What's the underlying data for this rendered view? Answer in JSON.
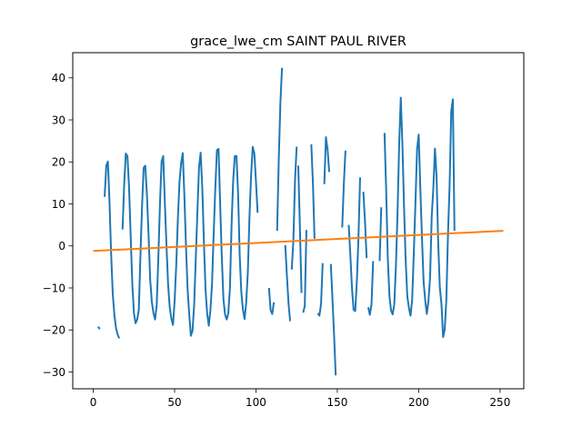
{
  "chart_data": {
    "type": "line",
    "title": "grace_lwe_cm SAINT PAUL RIVER",
    "xlabel": "",
    "ylabel": "",
    "xlim": [
      -12.6,
      264.6
    ],
    "ylim": [
      -34.0,
      46.0
    ],
    "xticks": [
      0,
      50,
      100,
      150,
      200,
      250
    ],
    "yticks": [
      -30,
      -20,
      -10,
      0,
      10,
      20,
      30,
      40
    ],
    "grid": false,
    "legend": "none",
    "series": [
      {
        "color": "#1f77b4",
        "segments": [
          [
            [
              3,
              -19.2
            ],
            [
              4,
              -19.8
            ]
          ],
          [
            [
              7,
              11.7
            ],
            [
              8,
              19.1
            ],
            [
              9,
              20.1
            ],
            [
              10,
              10.2
            ],
            [
              11,
              -2.0
            ],
            [
              12,
              -11.5
            ],
            [
              13,
              -16.5
            ],
            [
              14,
              -19.6
            ],
            [
              15,
              -21.1
            ],
            [
              16,
              -22.0
            ]
          ],
          [
            [
              18,
              3.9
            ],
            [
              19,
              14.5
            ],
            [
              20,
              22.0
            ],
            [
              21,
              21.4
            ],
            [
              22,
              14.0
            ],
            [
              23,
              2.3
            ],
            [
              24,
              -9.0
            ],
            [
              25,
              -16.0
            ],
            [
              26,
              -18.4
            ],
            [
              27,
              -17.5
            ],
            [
              28,
              -15.2
            ],
            [
              29,
              -2.2
            ],
            [
              30,
              9.6
            ],
            [
              31,
              18.6
            ],
            [
              32,
              19.1
            ],
            [
              33,
              12.1
            ],
            [
              34,
              2.5
            ],
            [
              35,
              -8.1
            ],
            [
              36,
              -13.3
            ],
            [
              37,
              -16.0
            ],
            [
              38,
              -17.5
            ],
            [
              39,
              -14.1
            ],
            [
              40,
              -2.7
            ],
            [
              41,
              10.0
            ],
            [
              42,
              20.1
            ],
            [
              43,
              21.4
            ],
            [
              44,
              10.2
            ],
            [
              45,
              0.2
            ],
            [
              46,
              -9.2
            ],
            [
              47,
              -14.6
            ],
            [
              48,
              -17.3
            ],
            [
              49,
              -18.8
            ],
            [
              50,
              -13.2
            ],
            [
              51,
              -4.6
            ],
            [
              52,
              6.4
            ],
            [
              53,
              15.2
            ],
            [
              54,
              19.7
            ],
            [
              55,
              22.1
            ],
            [
              56,
              12.0
            ],
            [
              57,
              -0.2
            ],
            [
              58,
              -10.5
            ],
            [
              59,
              -16.4
            ],
            [
              60,
              -21.4
            ],
            [
              61,
              -20.2
            ],
            [
              62,
              -14.2
            ],
            [
              63,
              -3.1
            ],
            [
              64,
              8.0
            ],
            [
              65,
              18.7
            ],
            [
              66,
              22.2
            ],
            [
              67,
              14.0
            ],
            [
              68,
              1.1
            ],
            [
              69,
              -10.4
            ],
            [
              70,
              -16.1
            ],
            [
              71,
              -19.0
            ],
            [
              72,
              -15.3
            ],
            [
              73,
              -9.0
            ],
            [
              74,
              2.8
            ],
            [
              75,
              13.6
            ],
            [
              76,
              22.8
            ],
            [
              77,
              23.1
            ],
            [
              78,
              9.9
            ],
            [
              79,
              -2.6
            ],
            [
              80,
              -12.6
            ],
            [
              81,
              -16.3
            ],
            [
              82,
              -17.5
            ],
            [
              83,
              -16.0
            ],
            [
              84,
              -10.1
            ],
            [
              85,
              5.0
            ],
            [
              86,
              15.6
            ],
            [
              87,
              21.4
            ],
            [
              88,
              21.4
            ],
            [
              89,
              12.7
            ],
            [
              90,
              -2.2
            ],
            [
              91,
              -11.0
            ],
            [
              92,
              -15.2
            ],
            [
              93,
              -17.4
            ],
            [
              94,
              -13.5
            ],
            [
              95,
              -6.3
            ],
            [
              96,
              6.8
            ],
            [
              97,
              16.7
            ],
            [
              98,
              23.6
            ],
            [
              99,
              22.0
            ],
            [
              100,
              15.3
            ],
            [
              101,
              7.9
            ]
          ],
          [
            [
              108,
              -10.0
            ],
            [
              109,
              -15.3
            ],
            [
              110,
              -16.2
            ],
            [
              111,
              -13.4
            ]
          ],
          [
            [
              113,
              3.6
            ],
            [
              114,
              20.4
            ],
            [
              115,
              33.9
            ],
            [
              116,
              42.4
            ]
          ],
          [
            [
              118,
              0.2
            ],
            [
              119,
              -7.0
            ],
            [
              120,
              -13.6
            ],
            [
              121,
              -17.9
            ]
          ],
          [
            [
              122,
              -5.6
            ],
            [
              123,
              1.4
            ],
            [
              124,
              15.6
            ],
            [
              125,
              23.6
            ]
          ],
          [
            [
              126,
              19.1
            ],
            [
              127,
              4.3
            ],
            [
              128,
              -11.2
            ]
          ],
          [
            [
              129,
              -15.9
            ],
            [
              130,
              -14.3
            ],
            [
              131,
              3.8
            ]
          ],
          [
            [
              134,
              24.2
            ],
            [
              135,
              15.1
            ],
            [
              136,
              1.7
            ]
          ],
          [
            [
              138,
              -16.0
            ],
            [
              139,
              -16.6
            ],
            [
              140,
              -13.8
            ],
            [
              141,
              -4.1
            ]
          ],
          [
            [
              142,
              14.7
            ],
            [
              143,
              25.9
            ],
            [
              144,
              23.0
            ],
            [
              145,
              17.6
            ]
          ],
          [
            [
              146,
              -4.3
            ],
            [
              147,
              -12.5
            ],
            [
              148,
              -21.2
            ],
            [
              149,
              -30.8
            ]
          ],
          [
            [
              153,
              4.4
            ],
            [
              154,
              14.7
            ],
            [
              155,
              22.7
            ]
          ],
          [
            [
              157,
              5.0
            ],
            [
              158,
              -2.2
            ],
            [
              159,
              -10.0
            ],
            [
              160,
              -15.2
            ],
            [
              161,
              -15.5
            ],
            [
              162,
              -8.4
            ],
            [
              163,
              2.1
            ],
            [
              164,
              16.3
            ]
          ],
          [
            [
              166,
              12.9
            ],
            [
              167,
              5.9
            ],
            [
              168,
              -2.9
            ]
          ],
          [
            [
              169,
              -14.6
            ],
            [
              170,
              -16.4
            ],
            [
              171,
              -13.9
            ],
            [
              172,
              -3.6
            ]
          ],
          [
            [
              176,
              -3.6
            ],
            [
              177,
              9.2
            ]
          ],
          [
            [
              179,
              26.9
            ],
            [
              180,
              13.6
            ],
            [
              181,
              -2.7
            ],
            [
              182,
              -11.8
            ],
            [
              183,
              -15.3
            ],
            [
              184,
              -16.3
            ],
            [
              185,
              -13.9
            ],
            [
              186,
              -4.9
            ],
            [
              187,
              7.9
            ],
            [
              188,
              24.1
            ],
            [
              189,
              35.3
            ],
            [
              190,
              24.2
            ],
            [
              191,
              9.3
            ],
            [
              192,
              -3.4
            ],
            [
              193,
              -12.0
            ],
            [
              194,
              -14.7
            ],
            [
              195,
              -16.6
            ],
            [
              196,
              -12.8
            ],
            [
              197,
              -1.8
            ],
            [
              198,
              10.1
            ],
            [
              199,
              23.0
            ],
            [
              200,
              26.5
            ],
            [
              201,
              13.8
            ],
            [
              202,
              2.2
            ],
            [
              203,
              -8.4
            ],
            [
              204,
              -12.9
            ],
            [
              205,
              -16.2
            ],
            [
              206,
              -13.1
            ],
            [
              207,
              -7.5
            ],
            [
              208,
              6.9
            ],
            [
              209,
              13.7
            ],
            [
              210,
              23.2
            ],
            [
              211,
              16.4
            ],
            [
              212,
              0.7
            ],
            [
              213,
              -10.0
            ],
            [
              214,
              -13.8
            ],
            [
              215,
              -21.7
            ],
            [
              216,
              -19.9
            ],
            [
              217,
              -12.8
            ],
            [
              218,
              2.7
            ],
            [
              219,
              14.4
            ],
            [
              220,
              32.0
            ],
            [
              221,
              34.9
            ],
            [
              222,
              3.6
            ]
          ]
        ]
      },
      {
        "color": "#ff7f0e",
        "segments": [
          [
            [
              0,
              -1.2
            ],
            [
              252,
              3.6
            ]
          ]
        ]
      }
    ]
  }
}
